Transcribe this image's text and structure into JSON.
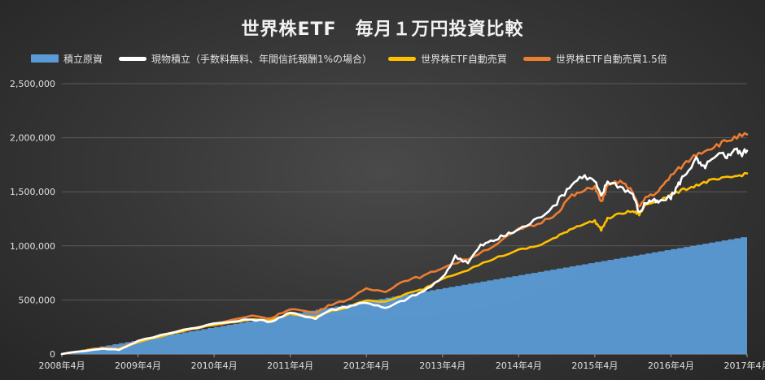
{
  "chart_data": {
    "type": "line",
    "title": "世界株ETF　毎月１万円投資比較",
    "legend_position": "top",
    "x_tick_labels": [
      "2008年4月",
      "2009年4月",
      "2010年4月",
      "2011年4月",
      "2012年4月",
      "2013年4月",
      "2014年4月",
      "2015年4月",
      "2016年4月",
      "2017年4月"
    ],
    "y_tick_labels": [
      "0",
      "500,000",
      "1,000,000",
      "1,500,000",
      "2,000,000",
      "2,500,000"
    ],
    "ylim": [
      0,
      2500000
    ],
    "x_months": [
      0,
      108
    ],
    "grid": {
      "horizontal": true,
      "vertical": false
    },
    "series": [
      {
        "name": "積立原資",
        "type": "area",
        "color": "#5b9bd5",
        "x": [
          0,
          108
        ],
        "y": [
          10000,
          1090000
        ]
      },
      {
        "name": "現物積立（手数料無料、年間信託報酬1%の場合）",
        "type": "line",
        "color": "#ffffff",
        "x": [
          0,
          6,
          9,
          12,
          18,
          24,
          30,
          33,
          36,
          40,
          42,
          45,
          48,
          51,
          54,
          57,
          60,
          62,
          64,
          66,
          68,
          70,
          72,
          75,
          78,
          80,
          82,
          84,
          85,
          86,
          88,
          90,
          91,
          92,
          93,
          94,
          96,
          97,
          98,
          100,
          101,
          102,
          104,
          105,
          106,
          107,
          108
        ],
        "y": [
          0,
          50000,
          40000,
          120000,
          210000,
          280000,
          320000,
          300000,
          380000,
          330000,
          400000,
          440000,
          480000,
          420000,
          500000,
          580000,
          700000,
          900000,
          850000,
          1000000,
          1050000,
          1100000,
          1150000,
          1250000,
          1400000,
          1550000,
          1650000,
          1600000,
          1450000,
          1600000,
          1550000,
          1480000,
          1300000,
          1400000,
          1420000,
          1400000,
          1450000,
          1550000,
          1650000,
          1800000,
          1720000,
          1770000,
          1850000,
          1830000,
          1900000,
          1850000,
          1880000
        ]
      },
      {
        "name": "世界株ETF自動売買",
        "type": "line",
        "color": "#ffc000",
        "x": [
          0,
          6,
          9,
          12,
          18,
          24,
          30,
          33,
          36,
          40,
          42,
          45,
          48,
          51,
          54,
          57,
          60,
          64,
          68,
          72,
          75,
          78,
          80,
          82,
          84,
          85,
          86,
          88,
          90,
          91,
          92,
          94,
          96,
          98,
          100,
          102,
          104,
          106,
          108
        ],
        "y": [
          0,
          50000,
          45000,
          110000,
          200000,
          270000,
          320000,
          310000,
          370000,
          340000,
          390000,
          430000,
          500000,
          480000,
          550000,
          600000,
          700000,
          780000,
          880000,
          960000,
          1000000,
          1080000,
          1150000,
          1200000,
          1230000,
          1150000,
          1250000,
          1300000,
          1320000,
          1290000,
          1380000,
          1420000,
          1470000,
          1520000,
          1560000,
          1600000,
          1620000,
          1640000,
          1670000
        ]
      },
      {
        "name": "世界株ETF自動売買1.5倍",
        "type": "line",
        "color": "#ed7d31",
        "x": [
          0,
          6,
          9,
          12,
          18,
          24,
          30,
          33,
          36,
          40,
          42,
          45,
          48,
          51,
          54,
          57,
          60,
          64,
          68,
          72,
          75,
          78,
          80,
          82,
          84,
          85,
          86,
          88,
          90,
          91,
          92,
          94,
          96,
          98,
          100,
          102,
          104,
          106,
          108
        ],
        "y": [
          0,
          55000,
          50000,
          120000,
          210000,
          280000,
          350000,
          330000,
          420000,
          380000,
          450000,
          500000,
          600000,
          580000,
          680000,
          720000,
          800000,
          880000,
          1000000,
          1150000,
          1200000,
          1300000,
          1450000,
          1500000,
          1550000,
          1400000,
          1550000,
          1600000,
          1500000,
          1350000,
          1450000,
          1500000,
          1650000,
          1750000,
          1850000,
          1900000,
          1950000,
          2000000,
          2030000
        ]
      }
    ]
  }
}
